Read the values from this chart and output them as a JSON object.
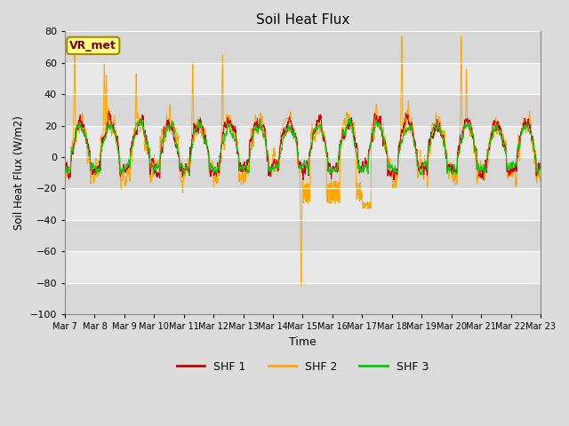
{
  "title": "Soil Heat Flux",
  "ylabel": "Soil Heat Flux (W/m2)",
  "xlabel": "Time",
  "ylim": [
    -100,
    80
  ],
  "yticks": [
    -100,
    -80,
    -60,
    -40,
    -20,
    0,
    20,
    40,
    60,
    80
  ],
  "bg_color": "#DCDCDC",
  "plot_bg_color": "#E8E8E8",
  "grid_color": "#FFFFFF",
  "shf1_color": "#CC0000",
  "shf2_color": "#FFA500",
  "shf3_color": "#00CC00",
  "legend_entries": [
    "SHF 1",
    "SHF 2",
    "SHF 3"
  ],
  "annotation_text": "VR_met",
  "start_day": 7,
  "end_day": 22,
  "n_days": 16
}
